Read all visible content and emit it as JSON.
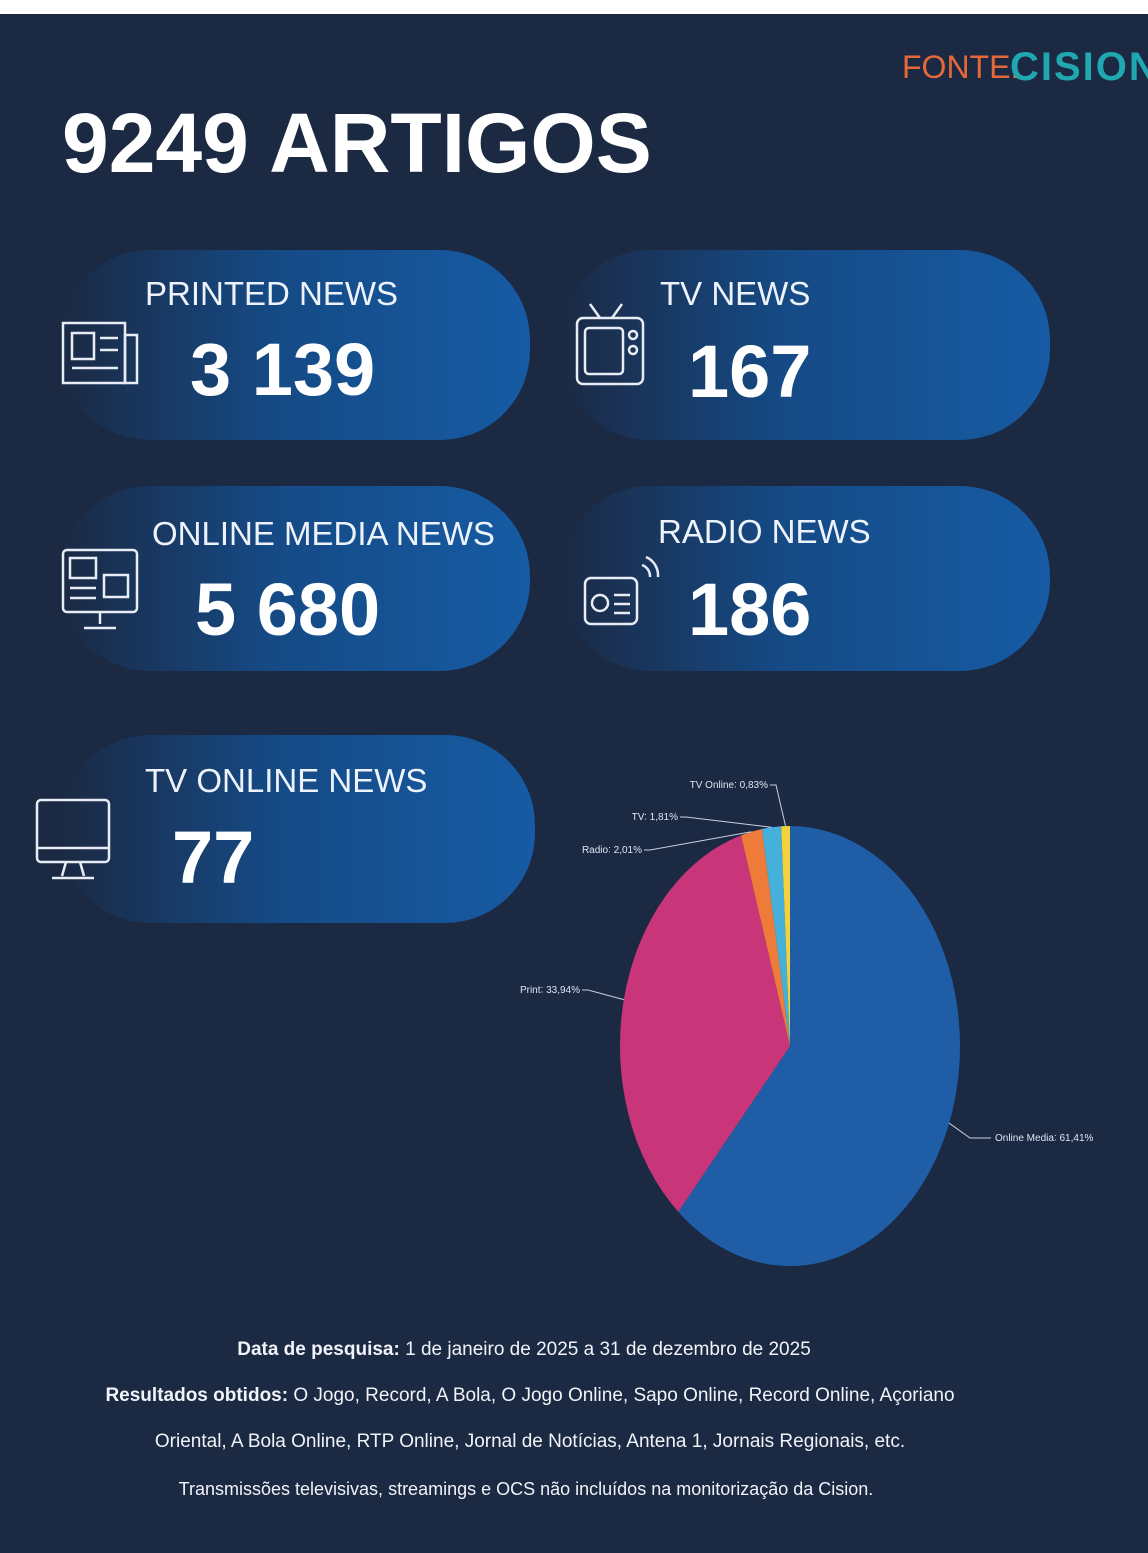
{
  "source": {
    "label": "FONTE:",
    "brand": "CISION"
  },
  "title": "9249 ARTIGOS",
  "cards": [
    {
      "label": "PRINTED NEWS",
      "value": "3 139"
    },
    {
      "label": "TV NEWS",
      "value": "167"
    },
    {
      "label": "ONLINE MEDIA NEWS",
      "value": "5 680"
    },
    {
      "label": "RADIO NEWS",
      "value": "186"
    },
    {
      "label": "TV ONLINE NEWS",
      "value": "77"
    }
  ],
  "chart_data": {
    "type": "pie",
    "categories": [
      "Online Media",
      "Print",
      "Radio",
      "TV",
      "TV Online"
    ],
    "values": [
      61.41,
      33.94,
      2.01,
      1.81,
      0.83
    ],
    "value_labels": [
      "61,41%",
      "33,94%",
      "2,01%",
      "1,81%",
      "0,83%"
    ],
    "colors": [
      "#1f5ea6",
      "#c83679",
      "#ef7b3b",
      "#45b0d9",
      "#f3d23c"
    ]
  },
  "footer": {
    "period_label": "Data de pesquisa:",
    "period": "1 de janeiro de 2025 a 31 de dezembro de 2025",
    "results_label": "Resultados obtidos:",
    "results_line1": "O Jogo, Record, A Bola, O Jogo Online, Sapo Online, Record Online, Açoriano",
    "results_line2": "Oriental, A Bola Online, RTP Online, Jornal de Notícias, Antena 1, Jornais Regionais, etc.",
    "note": "Transmissões televisivas, streamings e OCS não incluídos na monitorização da Cision."
  }
}
